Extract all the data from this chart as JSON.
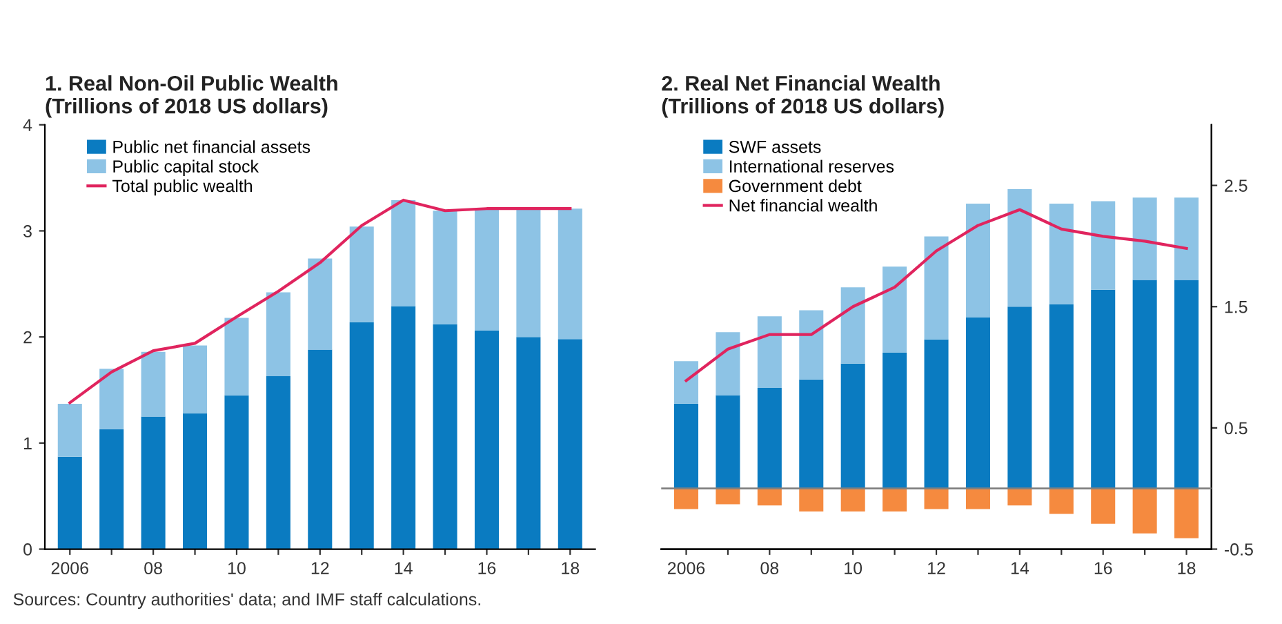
{
  "chart_data": [
    {
      "type": "bar",
      "stacked": true,
      "title": "1. Real Non-Oil Public Wealth\n(Trillions of 2018 US dollars)",
      "categories": [
        "2006",
        null,
        "08",
        null,
        "10",
        null,
        "12",
        null,
        "14",
        null,
        "16",
        null,
        "18"
      ],
      "series": [
        {
          "name": "Public net financial assets",
          "color": "#0a7bc1",
          "values": [
            0.87,
            1.13,
            1.25,
            1.28,
            1.45,
            1.63,
            1.88,
            2.14,
            2.29,
            2.12,
            2.06,
            2.0,
            1.98
          ]
        },
        {
          "name": "Public capital stock",
          "color": "#8dc3e5",
          "values": [
            0.5,
            0.57,
            0.61,
            0.64,
            0.73,
            0.79,
            0.86,
            0.9,
            1.0,
            1.07,
            1.15,
            1.21,
            1.23
          ]
        },
        {
          "name": "Total public wealth",
          "type": "line",
          "color": "#e0245e",
          "values": [
            1.38,
            1.67,
            1.87,
            1.94,
            2.19,
            2.43,
            2.7,
            3.05,
            3.29,
            3.19,
            3.21,
            3.21,
            3.21
          ]
        }
      ],
      "ylim": [
        0,
        4
      ],
      "yticks": [
        0,
        1,
        2,
        3,
        4
      ],
      "legend": "top left",
      "grid": false,
      "annotations": [
        "Sources: Country authorities' data; and IMF staff calculations."
      ]
    },
    {
      "type": "bar",
      "stacked": true,
      "title": "2. Real Net Financial Wealth\n(Trillions of 2018 US dollars)",
      "categories": [
        "2006",
        null,
        "08",
        null,
        "10",
        null,
        "12",
        null,
        "14",
        null,
        "16",
        null,
        "18"
      ],
      "series": [
        {
          "name": "SWF assets",
          "axis": "y2",
          "color": "#0a7bc1",
          "values": [
            0.7,
            0.77,
            0.83,
            0.9,
            1.03,
            1.12,
            1.23,
            1.41,
            1.5,
            1.52,
            1.64,
            1.72,
            1.72
          ]
        },
        {
          "name": "International reserves",
          "axis": "y2",
          "color": "#8dc3e5",
          "values": [
            0.35,
            0.52,
            0.59,
            0.57,
            0.63,
            0.71,
            0.85,
            0.94,
            0.97,
            0.83,
            0.73,
            0.68,
            0.68
          ]
        },
        {
          "name": "Government debt",
          "axis": "y2",
          "color": "#f58a3f",
          "values": [
            -0.17,
            -0.13,
            -0.14,
            -0.19,
            -0.19,
            -0.19,
            -0.17,
            -0.17,
            -0.14,
            -0.21,
            -0.29,
            -0.37,
            -0.41
          ]
        },
        {
          "name": "Net financial wealth",
          "axis": "y2",
          "type": "line",
          "color": "#e0245e",
          "values": [
            0.89,
            1.15,
            1.27,
            1.27,
            1.5,
            1.66,
            1.96,
            2.17,
            2.3,
            2.14,
            2.08,
            2.04,
            1.98
          ]
        }
      ],
      "y2lim": [
        -0.5,
        3.0
      ],
      "y2ticks": [
        -0.5,
        0.5,
        1.5,
        2.5
      ],
      "legend": "top left",
      "grid": false,
      "ref_lines": [
        {
          "axis": "y2",
          "value": 0,
          "color": "#808080"
        }
      ]
    }
  ]
}
